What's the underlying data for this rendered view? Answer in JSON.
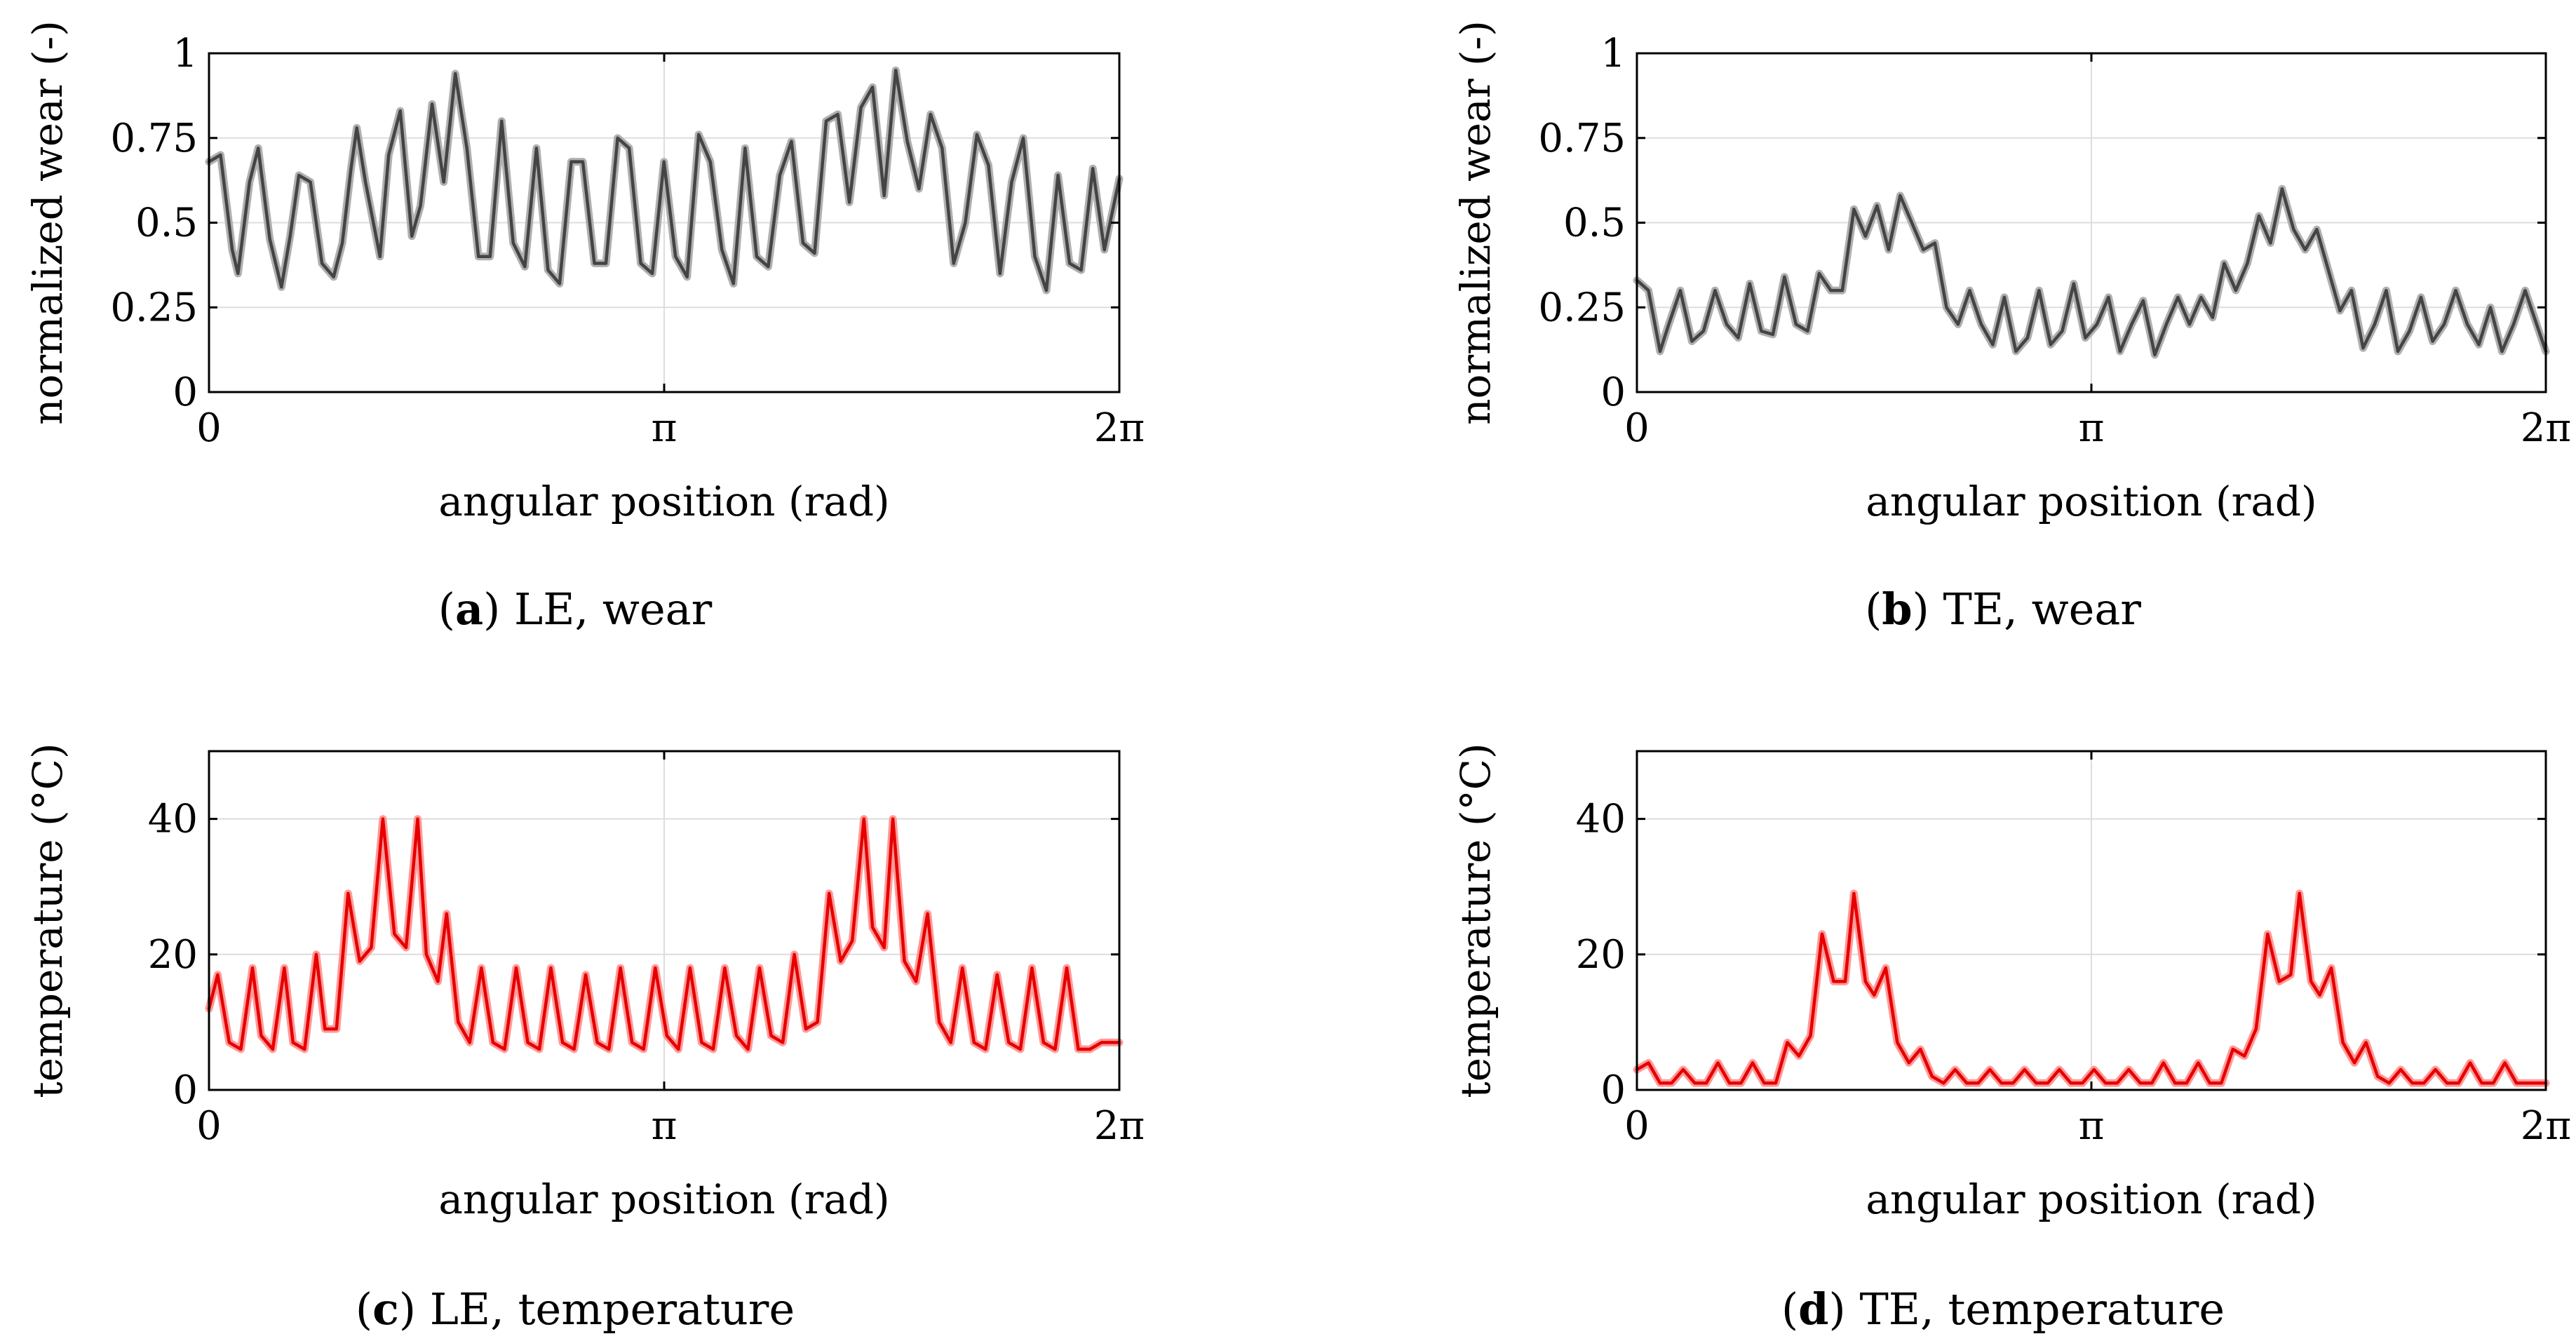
{
  "chart_data": [
    {
      "id": "a",
      "type": "line",
      "caption_letter": "a",
      "caption_text": " LE, wear",
      "xlabel": "angular position (rad)",
      "ylabel": "normalized wear (-)",
      "xlim": [
        0,
        6.2832
      ],
      "ylim": [
        0,
        1
      ],
      "xticks": [
        {
          "v": 0,
          "label": "0"
        },
        {
          "v": 3.1416,
          "label": "π"
        },
        {
          "v": 6.2832,
          "label": "2π"
        }
      ],
      "yticks": [
        {
          "v": 0,
          "label": "0"
        },
        {
          "v": 0.25,
          "label": "0.25"
        },
        {
          "v": 0.5,
          "label": "0.5"
        },
        {
          "v": 0.75,
          "label": "0.75"
        },
        {
          "v": 1,
          "label": "1"
        }
      ],
      "color": "#444444",
      "halo": "#b0b0b0",
      "series": [
        {
          "name": "wear",
          "x": [
            0,
            0.08,
            0.16,
            0.2,
            0.28,
            0.34,
            0.42,
            0.5,
            0.56,
            0.62,
            0.7,
            0.78,
            0.86,
            0.92,
            0.98,
            1.02,
            1.08,
            1.18,
            1.24,
            1.32,
            1.4,
            1.46,
            1.54,
            1.62,
            1.7,
            1.78,
            1.86,
            1.94,
            2.02,
            2.1,
            2.18,
            2.26,
            2.34,
            2.42,
            2.5,
            2.58,
            2.66,
            2.74,
            2.82,
            2.9,
            2.98,
            3.06,
            3.14,
            3.22,
            3.3,
            3.38,
            3.46,
            3.54,
            3.62,
            3.7,
            3.78,
            3.86,
            3.94,
            4.02,
            4.1,
            4.18,
            4.26,
            4.34,
            4.42,
            4.5,
            4.58,
            4.66,
            4.74,
            4.82,
            4.9,
            4.98,
            5.06,
            5.14,
            5.22,
            5.3,
            5.38,
            5.46,
            5.54,
            5.62,
            5.7,
            5.78,
            5.86,
            5.94,
            6.02,
            6.1,
            6.18,
            6.2832
          ],
          "values": [
            0.68,
            0.7,
            0.42,
            0.35,
            0.62,
            0.72,
            0.45,
            0.31,
            0.46,
            0.64,
            0.62,
            0.38,
            0.34,
            0.44,
            0.66,
            0.78,
            0.62,
            0.4,
            0.7,
            0.83,
            0.46,
            0.55,
            0.85,
            0.62,
            0.94,
            0.72,
            0.4,
            0.4,
            0.8,
            0.44,
            0.37,
            0.72,
            0.36,
            0.32,
            0.68,
            0.68,
            0.38,
            0.38,
            0.75,
            0.72,
            0.38,
            0.35,
            0.68,
            0.4,
            0.34,
            0.76,
            0.68,
            0.42,
            0.32,
            0.72,
            0.4,
            0.37,
            0.64,
            0.74,
            0.44,
            0.41,
            0.8,
            0.82,
            0.56,
            0.84,
            0.9,
            0.58,
            0.95,
            0.74,
            0.6,
            0.82,
            0.72,
            0.38,
            0.5,
            0.76,
            0.67,
            0.35,
            0.62,
            0.75,
            0.4,
            0.3,
            0.64,
            0.38,
            0.36,
            0.66,
            0.42,
            0.63
          ]
        }
      ]
    },
    {
      "id": "b",
      "type": "line",
      "caption_letter": "b",
      "caption_text": " TE, wear",
      "xlabel": "angular position (rad)",
      "ylabel": "normalized wear (-)",
      "xlim": [
        0,
        6.2832
      ],
      "ylim": [
        0,
        1
      ],
      "xticks": [
        {
          "v": 0,
          "label": "0"
        },
        {
          "v": 3.1416,
          "label": "π"
        },
        {
          "v": 6.2832,
          "label": "2π"
        }
      ],
      "yticks": [
        {
          "v": 0,
          "label": "0"
        },
        {
          "v": 0.25,
          "label": "0.25"
        },
        {
          "v": 0.5,
          "label": "0.5"
        },
        {
          "v": 0.75,
          "label": "0.75"
        },
        {
          "v": 1,
          "label": "1"
        }
      ],
      "color": "#444444",
      "halo": "#b0b0b0",
      "series": [
        {
          "name": "wear",
          "x": [
            0,
            0.08,
            0.16,
            0.22,
            0.3,
            0.38,
            0.46,
            0.54,
            0.62,
            0.7,
            0.78,
            0.86,
            0.94,
            1.02,
            1.1,
            1.18,
            1.26,
            1.34,
            1.42,
            1.5,
            1.58,
            1.66,
            1.74,
            1.82,
            1.9,
            1.98,
            2.06,
            2.14,
            2.22,
            2.3,
            2.38,
            2.46,
            2.54,
            2.62,
            2.7,
            2.78,
            2.86,
            2.94,
            3.02,
            3.1,
            3.18,
            3.26,
            3.34,
            3.42,
            3.5,
            3.58,
            3.66,
            3.74,
            3.82,
            3.9,
            3.98,
            4.06,
            4.14,
            4.22,
            4.3,
            4.38,
            4.46,
            4.54,
            4.62,
            4.7,
            4.78,
            4.86,
            4.94,
            5.02,
            5.1,
            5.18,
            5.26,
            5.34,
            5.42,
            5.5,
            5.58,
            5.66,
            5.74,
            5.82,
            5.9,
            5.98,
            6.06,
            6.14,
            6.2832
          ],
          "values": [
            0.33,
            0.3,
            0.12,
            0.2,
            0.3,
            0.15,
            0.18,
            0.3,
            0.2,
            0.16,
            0.32,
            0.18,
            0.17,
            0.34,
            0.2,
            0.18,
            0.35,
            0.3,
            0.3,
            0.54,
            0.46,
            0.55,
            0.42,
            0.58,
            0.5,
            0.42,
            0.44,
            0.25,
            0.2,
            0.3,
            0.2,
            0.14,
            0.28,
            0.12,
            0.16,
            0.3,
            0.14,
            0.18,
            0.32,
            0.16,
            0.2,
            0.28,
            0.12,
            0.2,
            0.27,
            0.11,
            0.2,
            0.28,
            0.2,
            0.28,
            0.22,
            0.38,
            0.3,
            0.38,
            0.52,
            0.44,
            0.6,
            0.48,
            0.42,
            0.48,
            0.36,
            0.24,
            0.3,
            0.13,
            0.2,
            0.3,
            0.12,
            0.18,
            0.28,
            0.15,
            0.2,
            0.3,
            0.2,
            0.14,
            0.25,
            0.12,
            0.2,
            0.3,
            0.12
          ]
        }
      ]
    },
    {
      "id": "c",
      "type": "line",
      "caption_letter": "c",
      "caption_text": " LE, temperature",
      "xlabel": "angular position (rad)",
      "ylabel": "temperature (°C)",
      "xlim": [
        0,
        6.2832
      ],
      "ylim": [
        0,
        50
      ],
      "xticks": [
        {
          "v": 0,
          "label": "0"
        },
        {
          "v": 3.1416,
          "label": "π"
        },
        {
          "v": 6.2832,
          "label": "2π"
        }
      ],
      "yticks": [
        {
          "v": 0,
          "label": "0"
        },
        {
          "v": 20,
          "label": "20"
        },
        {
          "v": 40,
          "label": "40"
        }
      ],
      "color": "#e60000",
      "halo": "#ff9a9a",
      "series": [
        {
          "name": "temperature",
          "x": [
            0,
            0.06,
            0.14,
            0.22,
            0.3,
            0.36,
            0.44,
            0.52,
            0.58,
            0.66,
            0.74,
            0.8,
            0.88,
            0.96,
            1.04,
            1.12,
            1.2,
            1.28,
            1.36,
            1.44,
            1.5,
            1.58,
            1.64,
            1.72,
            1.8,
            1.88,
            1.96,
            2.04,
            2.12,
            2.2,
            2.28,
            2.36,
            2.44,
            2.52,
            2.6,
            2.68,
            2.76,
            2.84,
            2.92,
            3.0,
            3.08,
            3.16,
            3.24,
            3.32,
            3.4,
            3.48,
            3.56,
            3.64,
            3.72,
            3.8,
            3.88,
            3.96,
            4.04,
            4.12,
            4.2,
            4.28,
            4.36,
            4.44,
            4.52,
            4.58,
            4.66,
            4.72,
            4.8,
            4.88,
            4.96,
            5.04,
            5.12,
            5.2,
            5.28,
            5.36,
            5.44,
            5.52,
            5.6,
            5.68,
            5.76,
            5.84,
            5.92,
            6.0,
            6.08,
            6.16,
            6.2832
          ],
          "values": [
            12,
            17,
            7,
            6,
            18,
            8,
            6,
            18,
            7,
            6,
            20,
            9,
            9,
            29,
            19,
            21,
            40,
            23,
            21,
            40,
            20,
            16,
            26,
            10,
            7,
            18,
            7,
            6,
            18,
            7,
            6,
            18,
            7,
            6,
            17,
            7,
            6,
            18,
            7,
            6,
            18,
            8,
            6,
            18,
            7,
            6,
            18,
            8,
            6,
            18,
            8,
            7,
            20,
            9,
            10,
            29,
            19,
            22,
            40,
            24,
            21,
            40,
            19,
            16,
            26,
            10,
            7,
            18,
            7,
            6,
            17,
            7,
            6,
            18,
            7,
            6,
            18,
            6,
            6,
            7,
            7
          ]
        }
      ]
    },
    {
      "id": "d",
      "type": "line",
      "caption_letter": "d",
      "caption_text": " TE, temperature",
      "xlabel": "angular position (rad)",
      "ylabel": "temperature (°C)",
      "xlim": [
        0,
        6.2832
      ],
      "ylim": [
        0,
        50
      ],
      "xticks": [
        {
          "v": 0,
          "label": "0"
        },
        {
          "v": 3.1416,
          "label": "π"
        },
        {
          "v": 6.2832,
          "label": "2π"
        }
      ],
      "yticks": [
        {
          "v": 0,
          "label": "0"
        },
        {
          "v": 20,
          "label": "20"
        },
        {
          "v": 40,
          "label": "40"
        }
      ],
      "color": "#e60000",
      "halo": "#ff9a9a",
      "series": [
        {
          "name": "temperature",
          "x": [
            0,
            0.08,
            0.16,
            0.24,
            0.32,
            0.4,
            0.48,
            0.56,
            0.64,
            0.72,
            0.8,
            0.88,
            0.96,
            1.04,
            1.12,
            1.2,
            1.28,
            1.36,
            1.44,
            1.5,
            1.58,
            1.64,
            1.72,
            1.8,
            1.88,
            1.96,
            2.04,
            2.12,
            2.2,
            2.28,
            2.36,
            2.44,
            2.52,
            2.6,
            2.68,
            2.76,
            2.84,
            2.92,
            3.0,
            3.08,
            3.16,
            3.24,
            3.32,
            3.4,
            3.48,
            3.56,
            3.64,
            3.72,
            3.8,
            3.88,
            3.96,
            4.04,
            4.12,
            4.2,
            4.28,
            4.36,
            4.44,
            4.52,
            4.58,
            4.66,
            4.72,
            4.8,
            4.88,
            4.96,
            5.04,
            5.12,
            5.2,
            5.28,
            5.36,
            5.44,
            5.52,
            5.6,
            5.68,
            5.76,
            5.84,
            5.92,
            6.0,
            6.08,
            6.16,
            6.2832
          ],
          "values": [
            3,
            4,
            1,
            1,
            3,
            1,
            1,
            4,
            1,
            1,
            4,
            1,
            1,
            7,
            5,
            8,
            23,
            16,
            16,
            29,
            16,
            14,
            18,
            7,
            4,
            6,
            2,
            1,
            3,
            1,
            1,
            3,
            1,
            1,
            3,
            1,
            1,
            3,
            1,
            1,
            3,
            1,
            1,
            3,
            1,
            1,
            4,
            1,
            1,
            4,
            1,
            1,
            6,
            5,
            9,
            23,
            16,
            17,
            29,
            16,
            14,
            18,
            7,
            4,
            7,
            2,
            1,
            3,
            1,
            1,
            3,
            1,
            1,
            4,
            1,
            1,
            4,
            1,
            1,
            1
          ]
        }
      ]
    }
  ]
}
